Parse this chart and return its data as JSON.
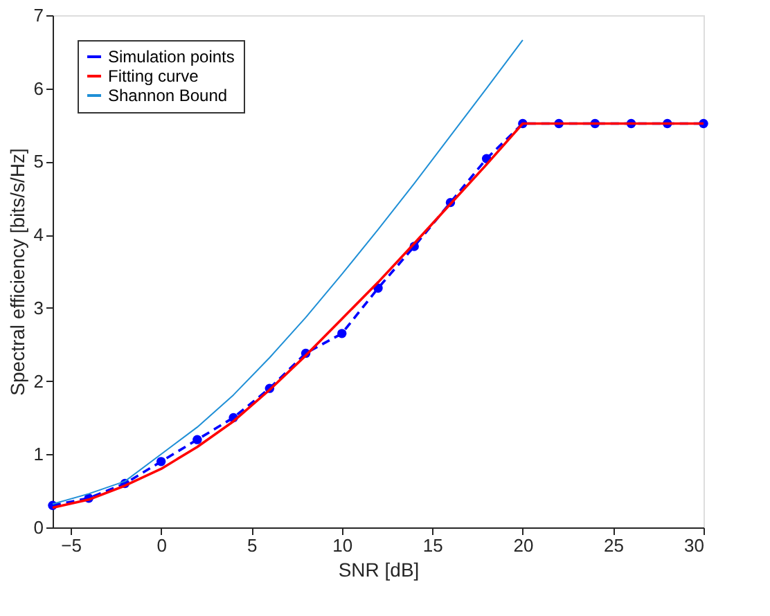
{
  "chart_data": {
    "type": "line",
    "xlabel": "SNR [dB]",
    "ylabel": "Spectral efficiency [bits/s/Hz]",
    "x": [
      -6,
      -4,
      -2,
      0,
      2,
      4,
      6,
      8,
      10,
      12,
      14,
      16,
      18,
      20,
      22,
      24,
      26,
      28,
      30
    ],
    "series": [
      {
        "name": "Simulation points",
        "color": "#0000ff",
        "marker": "circle",
        "line_style": "dashed",
        "values": [
          0.3,
          0.4,
          0.6,
          0.9,
          1.2,
          1.5,
          1.9,
          2.38,
          2.65,
          3.27,
          3.84,
          4.44,
          5.04,
          5.52,
          5.52,
          5.52,
          5.52,
          5.52,
          5.52
        ]
      },
      {
        "name": "Fitting curve",
        "color": "#ff0000",
        "marker": "none",
        "line_style": "solid",
        "values": [
          0.27,
          0.38,
          0.57,
          0.8,
          1.1,
          1.45,
          1.88,
          2.35,
          2.85,
          3.35,
          3.88,
          4.42,
          4.96,
          5.52,
          5.52,
          5.52,
          5.52,
          5.52,
          5.52
        ]
      },
      {
        "name": "Shannon Bound",
        "color": "#1f8fd6",
        "marker": "none",
        "line_style": "solid",
        "x": [
          -6,
          -4,
          -2,
          0,
          2,
          4,
          6,
          8,
          10,
          12,
          14,
          16,
          18,
          20
        ],
        "values": [
          0.32,
          0.46,
          0.63,
          1.0,
          1.37,
          1.81,
          2.32,
          2.87,
          3.46,
          4.07,
          4.7,
          5.35,
          6.0,
          6.66
        ]
      }
    ],
    "xlim": [
      -6,
      30
    ],
    "ylim": [
      0,
      7
    ],
    "xticks": [
      -5,
      0,
      5,
      10,
      15,
      20,
      25,
      30
    ],
    "yticks": [
      0,
      1,
      2,
      3,
      4,
      5,
      6,
      7
    ],
    "grid": false,
    "legend": "top left"
  }
}
